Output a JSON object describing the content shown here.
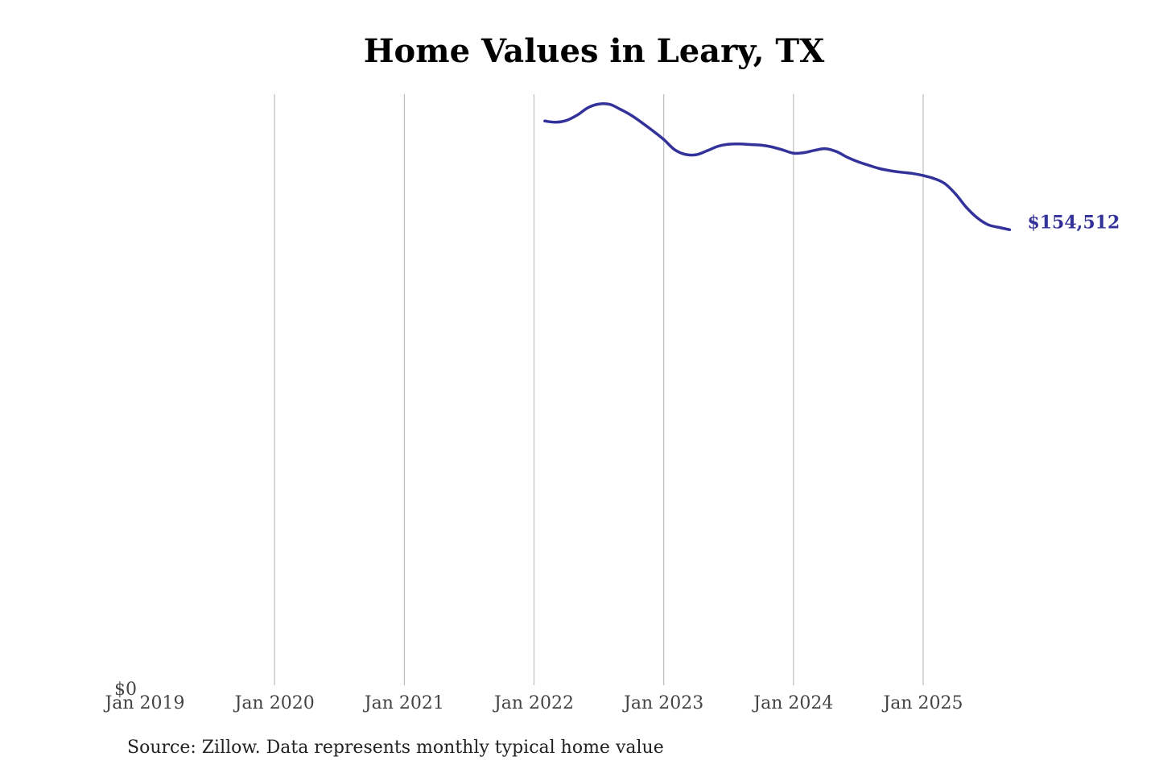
{
  "chart_data": {
    "type": "line",
    "title": "Home Values in Leary, TX",
    "source": "Source: Zillow. Data represents monthly typical home value",
    "xlim": [
      "2019-01",
      "2025-12"
    ],
    "ylim": [
      0,
      200000
    ],
    "y_ticks": [
      {
        "value": 0,
        "label": "$0"
      }
    ],
    "x_ticks": [
      {
        "date": "2019-01",
        "label": "Jan 2019"
      },
      {
        "date": "2020-01",
        "label": "Jan 2020"
      },
      {
        "date": "2021-01",
        "label": "Jan 2021"
      },
      {
        "date": "2022-01",
        "label": "Jan 2022"
      },
      {
        "date": "2023-01",
        "label": "Jan 2023"
      },
      {
        "date": "2024-01",
        "label": "Jan 2024"
      },
      {
        "date": "2025-01",
        "label": "Jan 2025"
      }
    ],
    "grid": "vertical",
    "line_color": "#33329a",
    "end_label": "$154,512",
    "series": [
      {
        "x": [
          "2022-02",
          "2022-03",
          "2022-04",
          "2022-05",
          "2022-06",
          "2022-07",
          "2022-08",
          "2022-09",
          "2022-10",
          "2022-11",
          "2022-12",
          "2023-01",
          "2023-02",
          "2023-03",
          "2023-04",
          "2023-05",
          "2023-06",
          "2023-07",
          "2023-08",
          "2023-09",
          "2023-10",
          "2023-11",
          "2023-12",
          "2024-01",
          "2024-02",
          "2024-03",
          "2024-04",
          "2024-05",
          "2024-06",
          "2024-07",
          "2024-08",
          "2024-09",
          "2024-10",
          "2024-11",
          "2024-12",
          "2025-01",
          "2025-02",
          "2025-03",
          "2025-04",
          "2025-05",
          "2025-06",
          "2025-07",
          "2025-08",
          "2025-09"
        ],
        "y": [
          191000,
          190600,
          191200,
          193000,
          195500,
          196700,
          196600,
          194900,
          192900,
          190400,
          187700,
          184800,
          181400,
          179800,
          179700,
          181000,
          182500,
          183200,
          183300,
          183100,
          182900,
          182300,
          181300,
          180200,
          180400,
          181200,
          181700,
          180700,
          178800,
          177300,
          176100,
          175000,
          174300,
          173800,
          173400,
          172700,
          171700,
          170000,
          166500,
          162000,
          158500,
          156200,
          155300,
          154512
        ]
      }
    ]
  }
}
